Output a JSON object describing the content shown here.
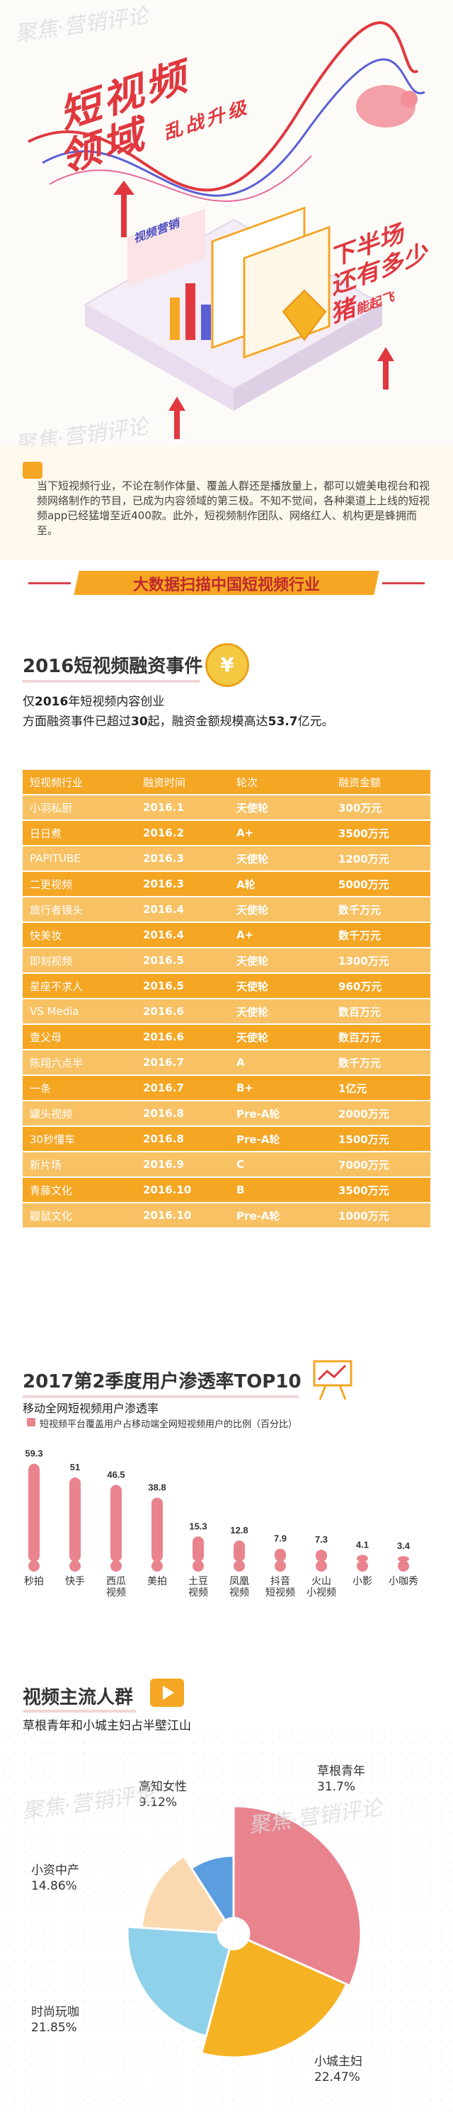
{
  "hero": {
    "title_line1": "短视频",
    "title_line2": "领域",
    "title_tag": "乱战升级",
    "side_line1": "下半场",
    "side_line2": "还有多少",
    "side_line3": "猪",
    "side_line3_small": "能起飞",
    "panel_label": "视频营销",
    "watermark": "聚焦·营销评论"
  },
  "intro": {
    "text": "当下短视频行业，不论在制作体量、覆盖人群还是播放量上，都可以媲美电视台和视频网络制作的节目，已成为内容领域的第三极。不知不觉间，各种渠道上上线的短视频app已经猛增至近400款。此外，短视频制作团队、网络红人、机构更是蜂拥而至。"
  },
  "banner": {
    "text": "大数据扫描中国短视频行业"
  },
  "financing": {
    "title": "2016短视频融资事件",
    "coin_symbol": "¥",
    "line1_prefix": "仅",
    "line1_bold": "2016",
    "line1_suffix": "年短视频内容创业",
    "line2_a": "方面融资事件已超过",
    "line2_b": "30",
    "line2_c": "起，融资金额规模高达",
    "line2_d": "53.7",
    "line2_e": "亿元。"
  },
  "chart_data": [
    {
      "type": "table",
      "columns": [
        "短视频行业",
        "融资时间",
        "轮次",
        "融资金额"
      ],
      "rows": [
        [
          "小羽私厨",
          "2016.1",
          "天使轮",
          "300万元"
        ],
        [
          "日日煮",
          "2016.2",
          "A+",
          "3500万元"
        ],
        [
          "PAPITUBE",
          "2016.3",
          "天使轮",
          "1200万元"
        ],
        [
          "二更视频",
          "2016.3",
          "A轮",
          "5000万元"
        ],
        [
          "旅行者镜头",
          "2016.4",
          "天使轮",
          "数千万元"
        ],
        [
          "快美妆",
          "2016.4",
          "A+",
          "数千万元"
        ],
        [
          "即刻视频",
          "2016.5",
          "天使轮",
          "1300万元"
        ],
        [
          "星座不求人",
          "2016.5",
          "天使轮",
          "960万元"
        ],
        [
          "VS Media",
          "2016.6",
          "天使轮",
          "数百万元"
        ],
        [
          "壹父母",
          "2016.6",
          "天使轮",
          "数百万元"
        ],
        [
          "陈翔六点半",
          "2016.7",
          "A",
          "数千万元"
        ],
        [
          "一条",
          "2016.7",
          "B+",
          "1亿元"
        ],
        [
          "罐头视频",
          "2016.8",
          "Pre-A轮",
          "2000万元"
        ],
        [
          "30秒懂车",
          "2016.8",
          "Pre-A轮",
          "1500万元"
        ],
        [
          "新片场",
          "2016.9",
          "C",
          "7000万元"
        ],
        [
          "青藤文化",
          "2016.10",
          "B",
          "3500万元"
        ],
        [
          "鼹鼠文化",
          "2016.10",
          "Pre-A轮",
          "1000万元"
        ]
      ]
    },
    {
      "type": "bar",
      "title": "2017第2季度用户渗透率TOP10",
      "subtitle": "移动全网短视频用户渗透率",
      "legend": "短视频平台覆盖用户占移动端全网短视频用户的比例（百分比）",
      "categories": [
        "秒拍",
        "快手",
        "西瓜\n视频",
        "美拍",
        "土豆\n视频",
        "凤凰\n视频",
        "抖音\n短视频",
        "火山\n小视频",
        "小影",
        "小咖秀"
      ],
      "values": [
        59.3,
        51,
        46.5,
        38.8,
        15.3,
        12.8,
        7.9,
        7.3,
        4.1,
        3.4
      ],
      "value_labels": [
        "59.3",
        "51",
        "46.5",
        "38.8",
        "15.3",
        "12.8",
        "7.9",
        "7.3",
        "4.1",
        "3.4"
      ],
      "ylim": [
        0,
        60
      ],
      "color": "#e9848f"
    },
    {
      "type": "pie",
      "title": "视频主流人群",
      "subtitle": "草根青年和小城主妇占半壁江山",
      "slices": [
        {
          "name": "草根青年",
          "value": 31.7,
          "label": "31.7%",
          "color": "#e9848f"
        },
        {
          "name": "小城主妇",
          "value": 22.47,
          "label": "22.47%",
          "color": "#f5b324"
        },
        {
          "name": "时尚玩咖",
          "value": 21.85,
          "label": "21.85%",
          "color": "#8fd0ea"
        },
        {
          "name": "小资中产",
          "value": 14.86,
          "label": "14.86%",
          "color": "#fbd9b0"
        },
        {
          "name": "高知女性",
          "value": 9.12,
          "label": "9.12%",
          "color": "#5a9ee0"
        }
      ]
    }
  ]
}
